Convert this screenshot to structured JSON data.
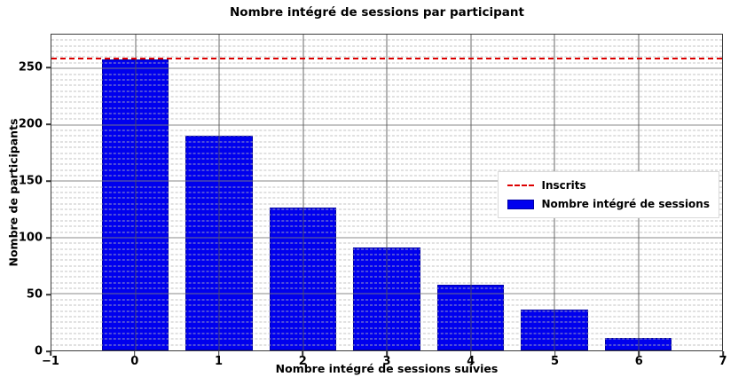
{
  "chart_data": {
    "type": "bar",
    "title": "Nombre intégré de sessions par participant",
    "xlabel": "Nombre intégré de sessions suivies",
    "ylabel": "Nombre de participants",
    "categories": [
      0,
      1,
      2,
      3,
      4,
      5,
      6
    ],
    "values": [
      258,
      190,
      127,
      91,
      58,
      36,
      11
    ],
    "bar_width": 0.8,
    "bar_color": "#0000ee",
    "bar_edge_color": "#0000a6",
    "xlim": [
      -1,
      7
    ],
    "ylim": [
      0,
      280
    ],
    "xticks": [
      -1,
      0,
      1,
      2,
      3,
      4,
      5,
      6,
      7
    ],
    "xtick_labels": [
      "−1",
      "0",
      "1",
      "2",
      "3",
      "4",
      "5",
      "6",
      "7"
    ],
    "yticks": [
      0,
      50,
      100,
      150,
      200,
      250
    ],
    "minor_grid_step": 5,
    "grid_major": true,
    "grid_minor_horizontal": true,
    "reference_line": {
      "label": "Inscrits",
      "value": 259,
      "color": "#dd0000",
      "style": "dashed"
    },
    "legend": [
      {
        "label": "Inscrits",
        "swatch": "dashed-line",
        "color": "#dd0000"
      },
      {
        "label": "Nombre intégré de sessions",
        "swatch": "filled-rect",
        "color": "#0000ee"
      }
    ],
    "legend_position": "center-right"
  }
}
